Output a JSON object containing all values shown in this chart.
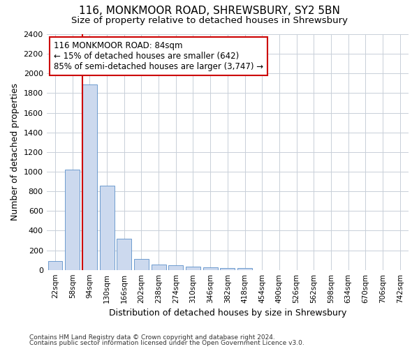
{
  "title": "116, MONKMOOR ROAD, SHREWSBURY, SY2 5BN",
  "subtitle": "Size of property relative to detached houses in Shrewsbury",
  "xlabel": "Distribution of detached houses by size in Shrewsbury",
  "ylabel": "Number of detached properties",
  "bar_color": "#ccd9ee",
  "bar_edge_color": "#5b8fc9",
  "grid_color": "#c8cfd8",
  "annotation_box_color": "#cc0000",
  "vline_color": "#cc0000",
  "background_color": "#ffffff",
  "categories": [
    "22sqm",
    "58sqm",
    "94sqm",
    "130sqm",
    "166sqm",
    "202sqm",
    "238sqm",
    "274sqm",
    "310sqm",
    "346sqm",
    "382sqm",
    "418sqm",
    "454sqm",
    "490sqm",
    "526sqm",
    "562sqm",
    "598sqm",
    "634sqm",
    "670sqm",
    "706sqm",
    "742sqm"
  ],
  "values": [
    90,
    1020,
    1890,
    860,
    320,
    115,
    55,
    50,
    35,
    28,
    22,
    18,
    0,
    0,
    0,
    0,
    0,
    0,
    0,
    0,
    0
  ],
  "ylim": [
    0,
    2400
  ],
  "yticks": [
    0,
    200,
    400,
    600,
    800,
    1000,
    1200,
    1400,
    1600,
    1800,
    2000,
    2200,
    2400
  ],
  "vline_x_index": 2,
  "annotation_text": "116 MONKMOOR ROAD: 84sqm\n← 15% of detached houses are smaller (642)\n85% of semi-detached houses are larger (3,747) →",
  "footnote1": "Contains HM Land Registry data © Crown copyright and database right 2024.",
  "footnote2": "Contains public sector information licensed under the Open Government Licence v3.0."
}
